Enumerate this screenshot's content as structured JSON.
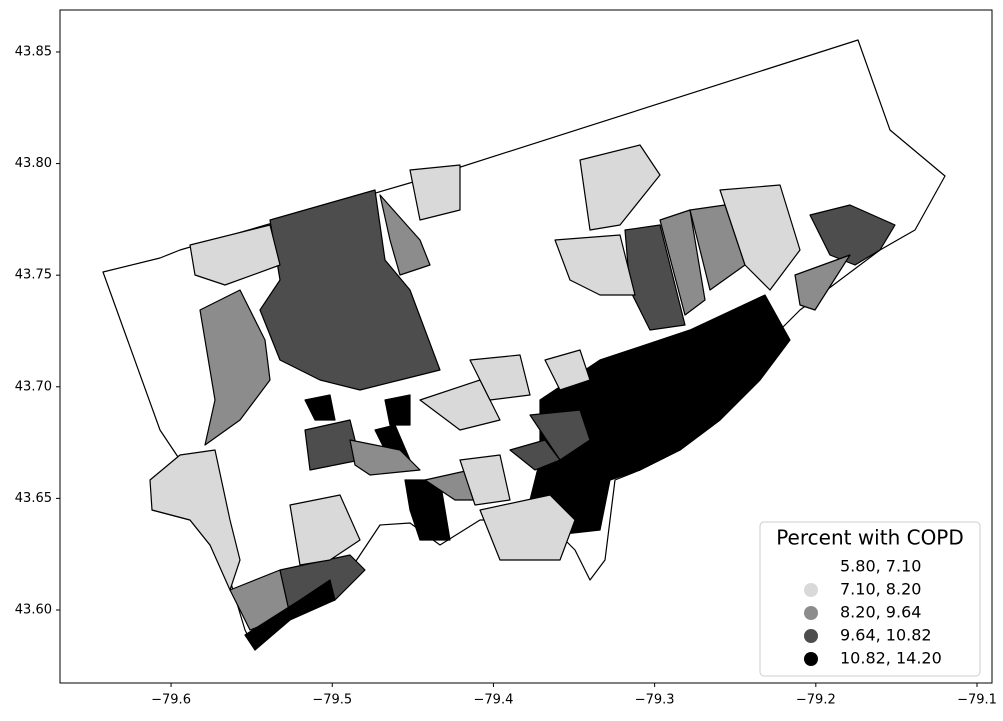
{
  "map": {
    "xlim": [
      -79.6689,
      -79.0907
    ],
    "ylim": [
      43.5673,
      43.8688
    ],
    "xticks": [
      {
        "value": -79.6,
        "label": "−79.6"
      },
      {
        "value": -79.5,
        "label": "−79.5"
      },
      {
        "value": -79.4,
        "label": "−79.4"
      },
      {
        "value": -79.3,
        "label": "−79.3"
      },
      {
        "value": -79.2,
        "label": "−79.2"
      },
      {
        "value": -79.1,
        "label": "−79.1"
      }
    ],
    "yticks": [
      {
        "value": 43.6,
        "label": "43.60"
      },
      {
        "value": 43.65,
        "label": "43.65"
      },
      {
        "value": 43.7,
        "label": "43.70"
      },
      {
        "value": 43.75,
        "label": "43.75"
      },
      {
        "value": 43.8,
        "label": "43.80"
      },
      {
        "value": 43.85,
        "label": "43.85"
      }
    ],
    "legend": {
      "title": "Percent with COPD",
      "items": [
        {
          "label": "5.80,  7.10",
          "color": "#ffffff"
        },
        {
          "label": "7.10,  8.20",
          "color": "#d9d9d9"
        },
        {
          "label": "8.20,  9.64",
          "color": "#8c8c8c"
        },
        {
          "label": "9.64, 10.82",
          "color": "#4d4d4d"
        },
        {
          "label": "10.82, 14.20",
          "color": "#000000"
        }
      ]
    }
  }
}
